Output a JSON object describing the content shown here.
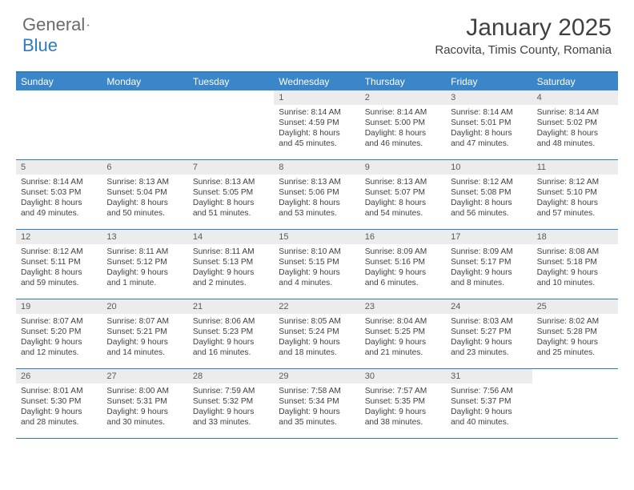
{
  "logo": {
    "general": "General",
    "blue": "Blue"
  },
  "title": "January 2025",
  "location": "Racovita, Timis County, Romania",
  "colors": {
    "header_bar": "#3a86c8",
    "border": "#2f7bbf",
    "daynum_bg": "#ececec",
    "text": "#3f3f3f"
  },
  "weekdays": [
    "Sunday",
    "Monday",
    "Tuesday",
    "Wednesday",
    "Thursday",
    "Friday",
    "Saturday"
  ],
  "weeks": [
    [
      {
        "day": "",
        "sunrise": "",
        "sunset": "",
        "daylight": ""
      },
      {
        "day": "",
        "sunrise": "",
        "sunset": "",
        "daylight": ""
      },
      {
        "day": "",
        "sunrise": "",
        "sunset": "",
        "daylight": ""
      },
      {
        "day": "1",
        "sunrise": "Sunrise: 8:14 AM",
        "sunset": "Sunset: 4:59 PM",
        "daylight": "Daylight: 8 hours and 45 minutes."
      },
      {
        "day": "2",
        "sunrise": "Sunrise: 8:14 AM",
        "sunset": "Sunset: 5:00 PM",
        "daylight": "Daylight: 8 hours and 46 minutes."
      },
      {
        "day": "3",
        "sunrise": "Sunrise: 8:14 AM",
        "sunset": "Sunset: 5:01 PM",
        "daylight": "Daylight: 8 hours and 47 minutes."
      },
      {
        "day": "4",
        "sunrise": "Sunrise: 8:14 AM",
        "sunset": "Sunset: 5:02 PM",
        "daylight": "Daylight: 8 hours and 48 minutes."
      }
    ],
    [
      {
        "day": "5",
        "sunrise": "Sunrise: 8:14 AM",
        "sunset": "Sunset: 5:03 PM",
        "daylight": "Daylight: 8 hours and 49 minutes."
      },
      {
        "day": "6",
        "sunrise": "Sunrise: 8:13 AM",
        "sunset": "Sunset: 5:04 PM",
        "daylight": "Daylight: 8 hours and 50 minutes."
      },
      {
        "day": "7",
        "sunrise": "Sunrise: 8:13 AM",
        "sunset": "Sunset: 5:05 PM",
        "daylight": "Daylight: 8 hours and 51 minutes."
      },
      {
        "day": "8",
        "sunrise": "Sunrise: 8:13 AM",
        "sunset": "Sunset: 5:06 PM",
        "daylight": "Daylight: 8 hours and 53 minutes."
      },
      {
        "day": "9",
        "sunrise": "Sunrise: 8:13 AM",
        "sunset": "Sunset: 5:07 PM",
        "daylight": "Daylight: 8 hours and 54 minutes."
      },
      {
        "day": "10",
        "sunrise": "Sunrise: 8:12 AM",
        "sunset": "Sunset: 5:08 PM",
        "daylight": "Daylight: 8 hours and 56 minutes."
      },
      {
        "day": "11",
        "sunrise": "Sunrise: 8:12 AM",
        "sunset": "Sunset: 5:10 PM",
        "daylight": "Daylight: 8 hours and 57 minutes."
      }
    ],
    [
      {
        "day": "12",
        "sunrise": "Sunrise: 8:12 AM",
        "sunset": "Sunset: 5:11 PM",
        "daylight": "Daylight: 8 hours and 59 minutes."
      },
      {
        "day": "13",
        "sunrise": "Sunrise: 8:11 AM",
        "sunset": "Sunset: 5:12 PM",
        "daylight": "Daylight: 9 hours and 1 minute."
      },
      {
        "day": "14",
        "sunrise": "Sunrise: 8:11 AM",
        "sunset": "Sunset: 5:13 PM",
        "daylight": "Daylight: 9 hours and 2 minutes."
      },
      {
        "day": "15",
        "sunrise": "Sunrise: 8:10 AM",
        "sunset": "Sunset: 5:15 PM",
        "daylight": "Daylight: 9 hours and 4 minutes."
      },
      {
        "day": "16",
        "sunrise": "Sunrise: 8:09 AM",
        "sunset": "Sunset: 5:16 PM",
        "daylight": "Daylight: 9 hours and 6 minutes."
      },
      {
        "day": "17",
        "sunrise": "Sunrise: 8:09 AM",
        "sunset": "Sunset: 5:17 PM",
        "daylight": "Daylight: 9 hours and 8 minutes."
      },
      {
        "day": "18",
        "sunrise": "Sunrise: 8:08 AM",
        "sunset": "Sunset: 5:18 PM",
        "daylight": "Daylight: 9 hours and 10 minutes."
      }
    ],
    [
      {
        "day": "19",
        "sunrise": "Sunrise: 8:07 AM",
        "sunset": "Sunset: 5:20 PM",
        "daylight": "Daylight: 9 hours and 12 minutes."
      },
      {
        "day": "20",
        "sunrise": "Sunrise: 8:07 AM",
        "sunset": "Sunset: 5:21 PM",
        "daylight": "Daylight: 9 hours and 14 minutes."
      },
      {
        "day": "21",
        "sunrise": "Sunrise: 8:06 AM",
        "sunset": "Sunset: 5:23 PM",
        "daylight": "Daylight: 9 hours and 16 minutes."
      },
      {
        "day": "22",
        "sunrise": "Sunrise: 8:05 AM",
        "sunset": "Sunset: 5:24 PM",
        "daylight": "Daylight: 9 hours and 18 minutes."
      },
      {
        "day": "23",
        "sunrise": "Sunrise: 8:04 AM",
        "sunset": "Sunset: 5:25 PM",
        "daylight": "Daylight: 9 hours and 21 minutes."
      },
      {
        "day": "24",
        "sunrise": "Sunrise: 8:03 AM",
        "sunset": "Sunset: 5:27 PM",
        "daylight": "Daylight: 9 hours and 23 minutes."
      },
      {
        "day": "25",
        "sunrise": "Sunrise: 8:02 AM",
        "sunset": "Sunset: 5:28 PM",
        "daylight": "Daylight: 9 hours and 25 minutes."
      }
    ],
    [
      {
        "day": "26",
        "sunrise": "Sunrise: 8:01 AM",
        "sunset": "Sunset: 5:30 PM",
        "daylight": "Daylight: 9 hours and 28 minutes."
      },
      {
        "day": "27",
        "sunrise": "Sunrise: 8:00 AM",
        "sunset": "Sunset: 5:31 PM",
        "daylight": "Daylight: 9 hours and 30 minutes."
      },
      {
        "day": "28",
        "sunrise": "Sunrise: 7:59 AM",
        "sunset": "Sunset: 5:32 PM",
        "daylight": "Daylight: 9 hours and 33 minutes."
      },
      {
        "day": "29",
        "sunrise": "Sunrise: 7:58 AM",
        "sunset": "Sunset: 5:34 PM",
        "daylight": "Daylight: 9 hours and 35 minutes."
      },
      {
        "day": "30",
        "sunrise": "Sunrise: 7:57 AM",
        "sunset": "Sunset: 5:35 PM",
        "daylight": "Daylight: 9 hours and 38 minutes."
      },
      {
        "day": "31",
        "sunrise": "Sunrise: 7:56 AM",
        "sunset": "Sunset: 5:37 PM",
        "daylight": "Daylight: 9 hours and 40 minutes."
      },
      {
        "day": "",
        "sunrise": "",
        "sunset": "",
        "daylight": ""
      }
    ]
  ]
}
